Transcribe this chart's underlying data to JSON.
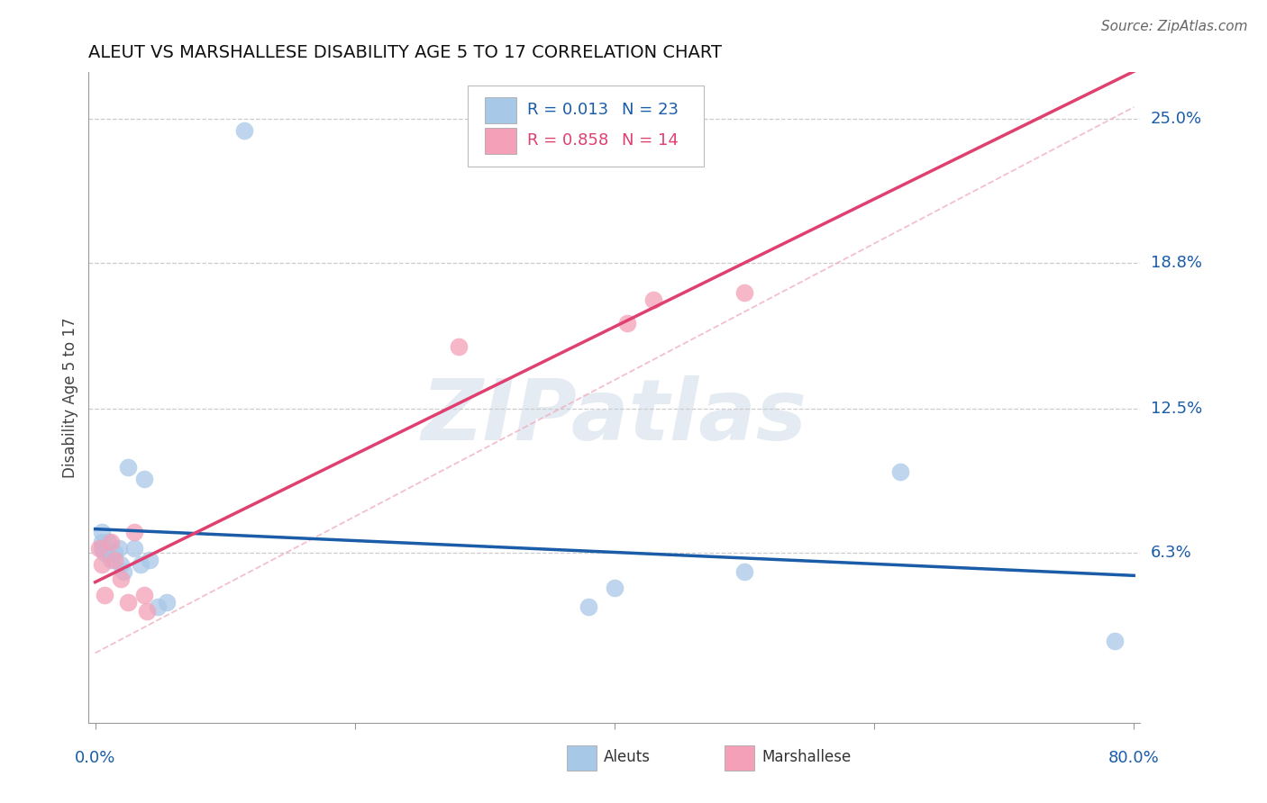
{
  "title": "ALEUT VS MARSHALLESE DISABILITY AGE 5 TO 17 CORRELATION CHART",
  "source": "Source: ZipAtlas.com",
  "ylabel": "Disability Age 5 to 17",
  "xmin": 0.0,
  "xmax": 0.8,
  "ymin": 0.0,
  "ymax": 0.265,
  "aleut_color": "#a8c8e8",
  "marsh_color": "#f4a0b8",
  "aleut_line_color": "#1a5ca8",
  "marsh_line_color": "#e04070",
  "marsh_dash_color": "#f0b0c0",
  "watermark_text": "ZIPatlas",
  "aleut_x": [
    0.115,
    0.005,
    0.005,
    0.005,
    0.007,
    0.01,
    0.012,
    0.015,
    0.018,
    0.02,
    0.022,
    0.025,
    0.03,
    0.035,
    0.038,
    0.042,
    0.048,
    0.055,
    0.38,
    0.4,
    0.5,
    0.62,
    0.785
  ],
  "aleut_y": [
    0.245,
    0.065,
    0.068,
    0.072,
    0.063,
    0.068,
    0.06,
    0.063,
    0.065,
    0.058,
    0.055,
    0.1,
    0.065,
    0.058,
    0.095,
    0.06,
    0.04,
    0.042,
    0.04,
    0.048,
    0.055,
    0.098,
    0.025
  ],
  "marsh_x": [
    0.003,
    0.005,
    0.007,
    0.012,
    0.015,
    0.02,
    0.025,
    0.03,
    0.038,
    0.04,
    0.28,
    0.41,
    0.43,
    0.5
  ],
  "marsh_y": [
    0.065,
    0.058,
    0.045,
    0.068,
    0.06,
    0.052,
    0.042,
    0.072,
    0.045,
    0.038,
    0.152,
    0.162,
    0.172,
    0.175
  ],
  "ytick_vals": [
    0.063,
    0.125,
    0.188,
    0.25
  ],
  "ytick_labels": [
    "6.3%",
    "12.5%",
    "18.8%",
    "25.0%"
  ],
  "xtick_vals": [
    0.0,
    0.2,
    0.4,
    0.6,
    0.8
  ]
}
